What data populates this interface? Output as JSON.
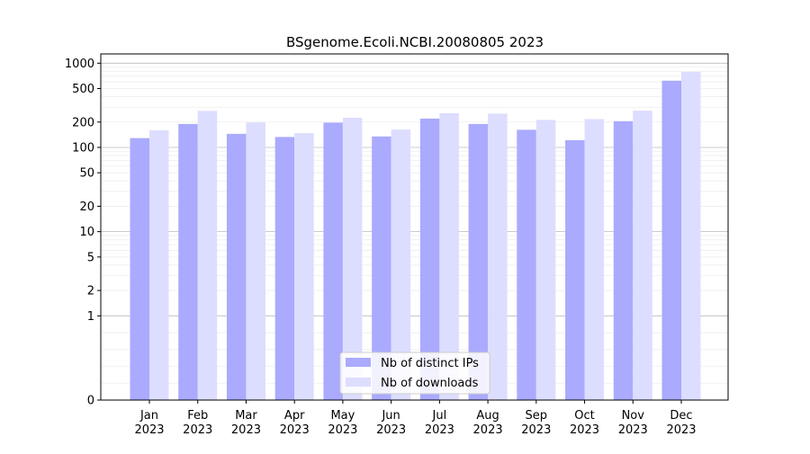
{
  "chart_data": {
    "type": "bar",
    "title": "BSgenome.Ecoli.NCBI.20080805 2023",
    "xlabel": "",
    "ylabel": "",
    "yscale": "symlog",
    "ylim": [
      0,
      1000
    ],
    "yticks": [
      0,
      1,
      2,
      5,
      10,
      20,
      50,
      100,
      200,
      500,
      1000
    ],
    "ytick_labels": [
      "0",
      "1",
      "2",
      "5",
      "10",
      "20",
      "50",
      "100",
      "200",
      "500",
      "1000"
    ],
    "categories": [
      "Jan\n2023",
      "Feb\n2023",
      "Mar\n2023",
      "Apr\n2023",
      "May\n2023",
      "Jun\n2023",
      "Jul\n2023",
      "Aug\n2023",
      "Sep\n2023",
      "Oct\n2023",
      "Nov\n2023",
      "Dec\n2023"
    ],
    "category_lines": [
      [
        "Jan",
        "2023"
      ],
      [
        "Feb",
        "2023"
      ],
      [
        "Mar",
        "2023"
      ],
      [
        "Apr",
        "2023"
      ],
      [
        "May",
        "2023"
      ],
      [
        "Jun",
        "2023"
      ],
      [
        "Jul",
        "2023"
      ],
      [
        "Aug",
        "2023"
      ],
      [
        "Sep",
        "2023"
      ],
      [
        "Oct",
        "2023"
      ],
      [
        "Nov",
        "2023"
      ],
      [
        "Dec",
        "2023"
      ]
    ],
    "series": [
      {
        "name": "Nb of distinct IPs",
        "color": "#aaaaff",
        "values": [
          129,
          190,
          145,
          133,
          197,
          135,
          220,
          190,
          162,
          122,
          205,
          620
        ]
      },
      {
        "name": "Nb of downloads",
        "color": "#ddddff",
        "values": [
          160,
          272,
          198,
          148,
          225,
          163,
          255,
          252,
          212,
          217,
          273,
          790
        ]
      }
    ],
    "grid": true,
    "legend_position": "bottom-center"
  }
}
